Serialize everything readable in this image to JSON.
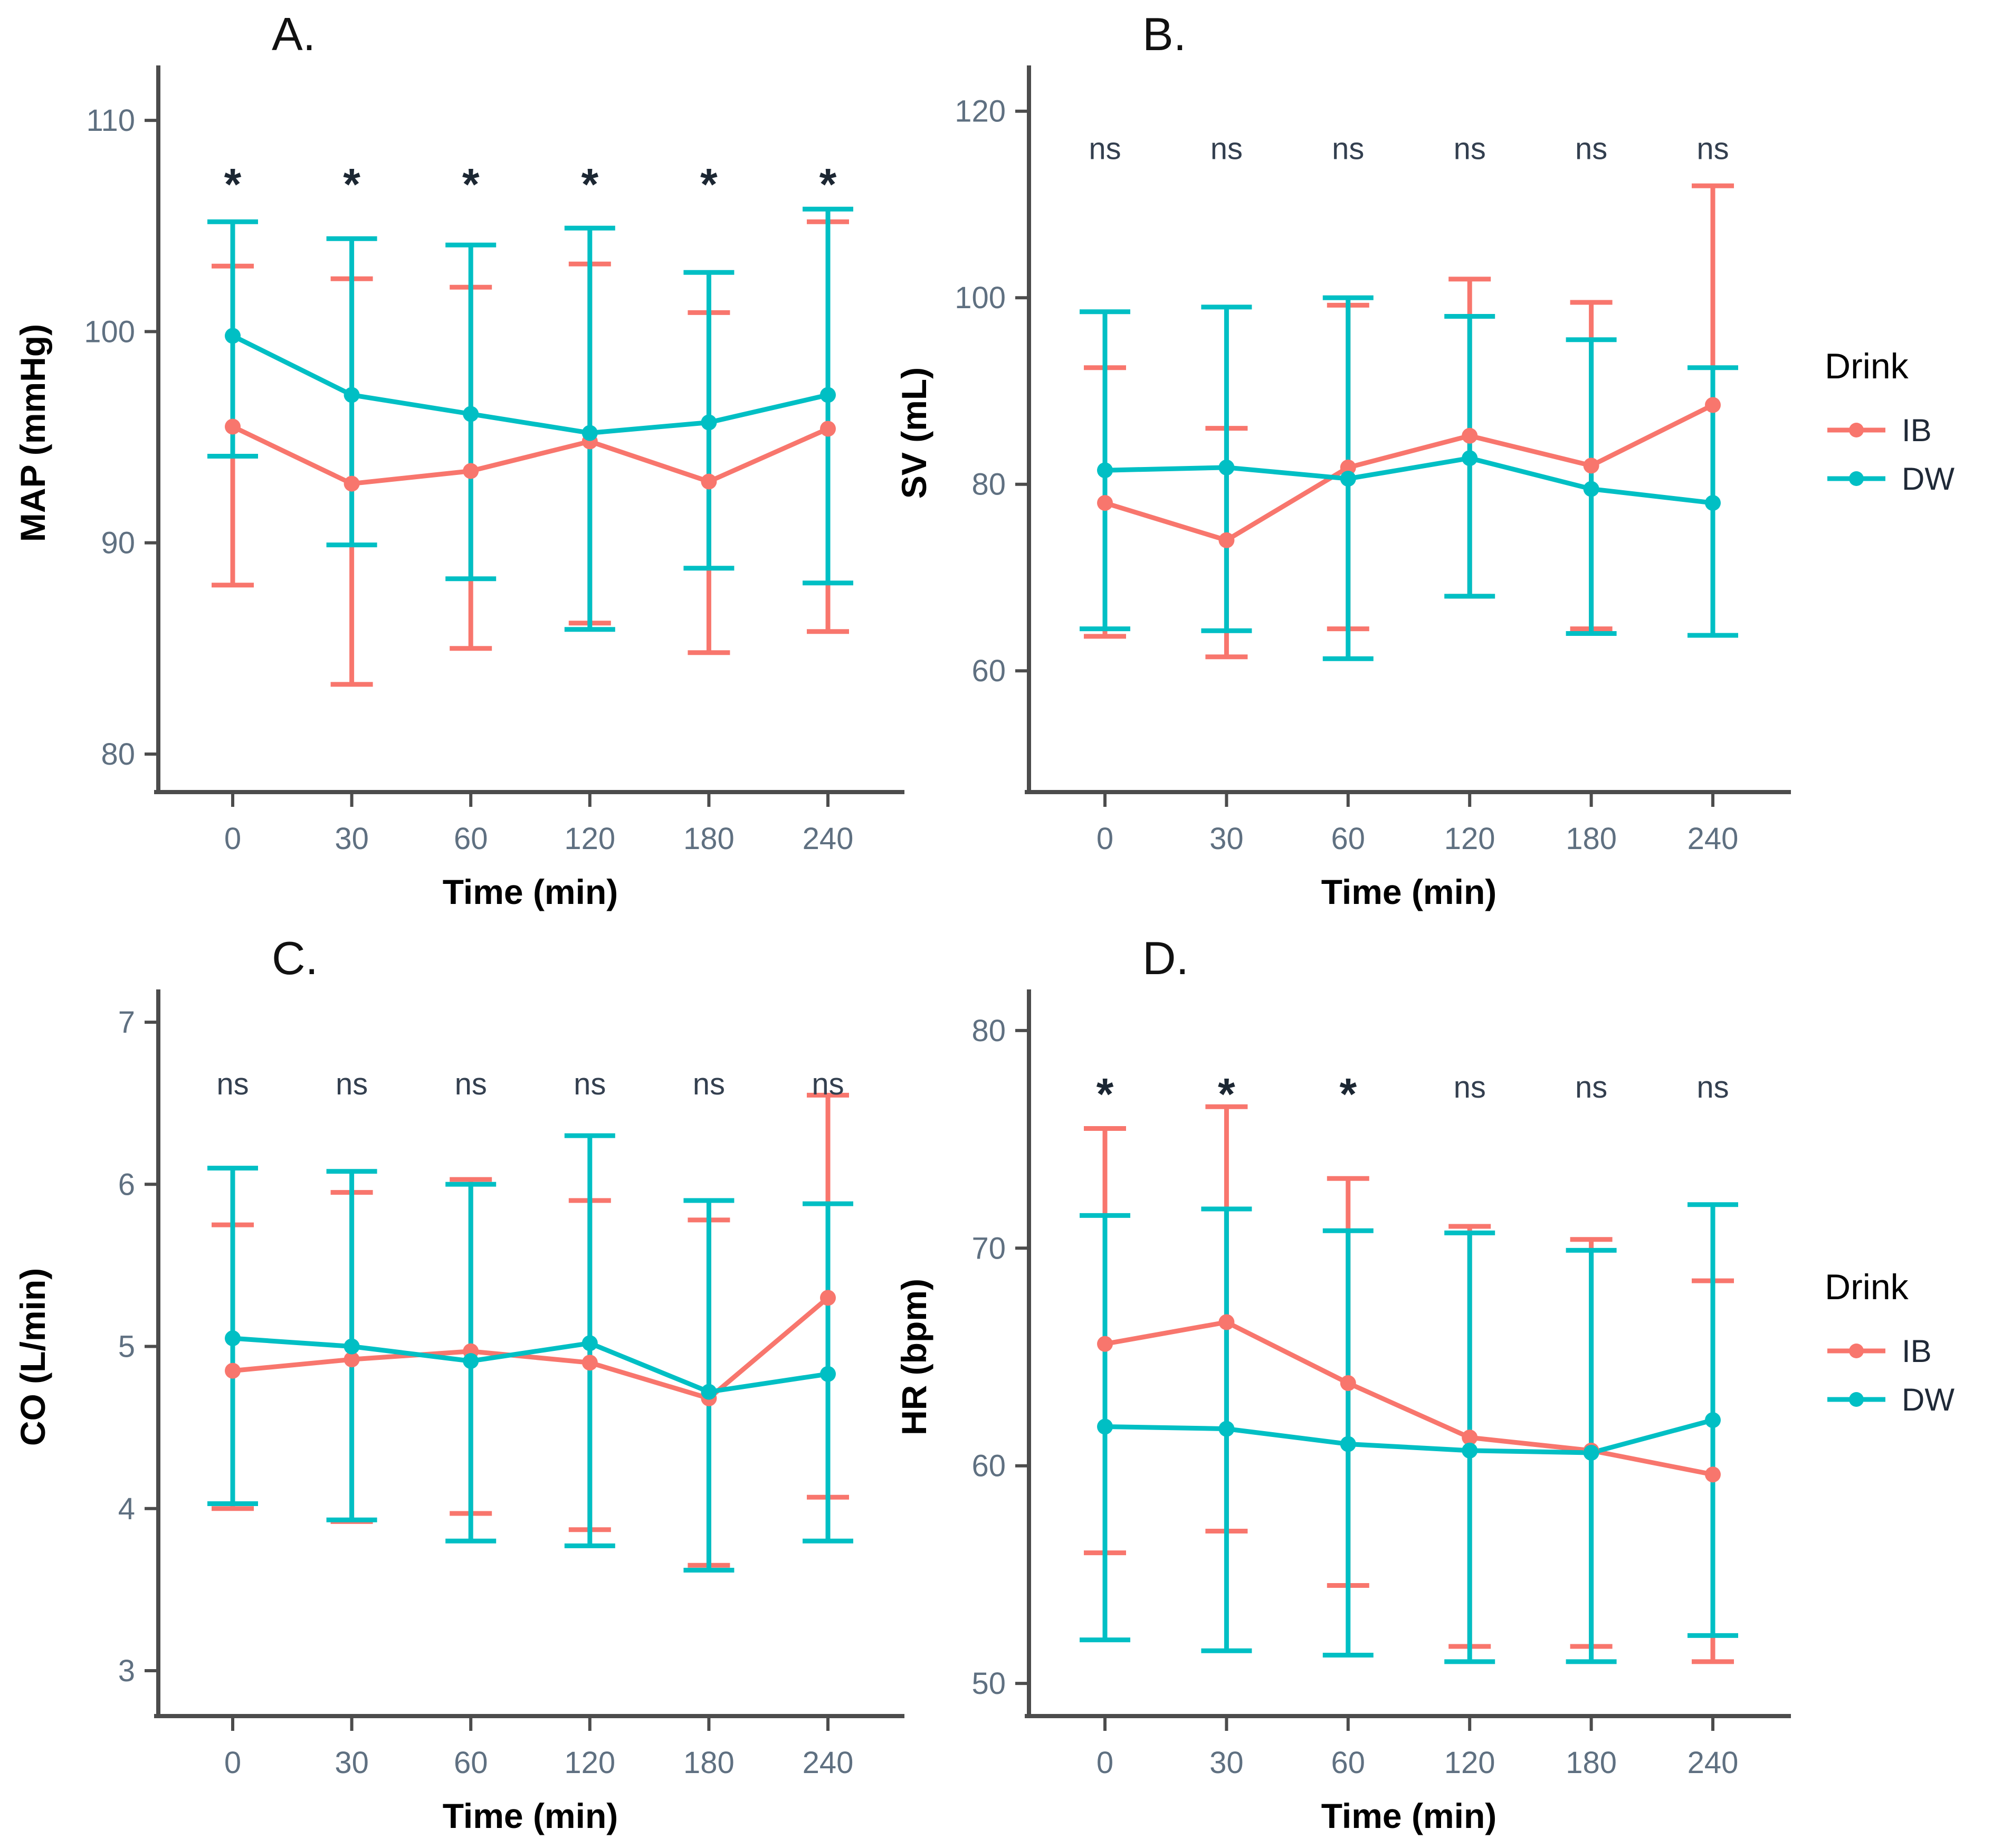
{
  "figure": {
    "background": "#ffffff"
  },
  "legend": {
    "title": "Drink",
    "items": [
      {
        "label": "IB",
        "color": "#f8766d"
      },
      {
        "label": "DW",
        "color": "#00bfc4"
      }
    ]
  },
  "chart_data": [
    {
      "id": "A",
      "label": "A.",
      "type": "line",
      "ylabel": "MAP (mmHg)",
      "xlabel": "Time (min)",
      "categories": [
        0,
        30,
        60,
        120,
        180,
        240
      ],
      "yticks": [
        80,
        90,
        100,
        110
      ],
      "ylim": [
        78.2,
        112.2
      ],
      "grid": false,
      "sig": [
        "*",
        "*",
        "*",
        "*",
        "*",
        "*"
      ],
      "sig_y": 107.3,
      "series": [
        {
          "name": "IB",
          "color": "#f8766d",
          "mean": [
            95.5,
            92.8,
            93.4,
            94.8,
            92.9,
            95.4
          ],
          "upper": [
            103.1,
            102.5,
            102.1,
            103.2,
            100.9,
            105.2
          ],
          "lower": [
            88.0,
            83.3,
            85.0,
            86.2,
            84.8,
            85.8
          ]
        },
        {
          "name": "DW",
          "color": "#00bfc4",
          "mean": [
            99.8,
            97.0,
            96.1,
            95.2,
            95.7,
            97.0
          ],
          "upper": [
            105.2,
            104.4,
            104.1,
            104.9,
            102.8,
            105.8
          ],
          "lower": [
            94.1,
            89.9,
            88.3,
            85.9,
            88.8,
            88.1
          ]
        }
      ]
    },
    {
      "id": "B",
      "label": "B.",
      "type": "line",
      "ylabel": "SV (mL)",
      "xlabel": "Time (min)",
      "categories": [
        0,
        30,
        60,
        120,
        180,
        240
      ],
      "yticks": [
        60,
        80,
        100,
        120
      ],
      "ylim": [
        47,
        124
      ],
      "grid": false,
      "sig": [
        "ns",
        "ns",
        "ns",
        "ns",
        "ns",
        "ns"
      ],
      "sig_y": 116,
      "series": [
        {
          "name": "IB",
          "color": "#f8766d",
          "mean": [
            78.0,
            74.0,
            81.8,
            85.2,
            82.0,
            88.5
          ],
          "upper": [
            92.5,
            86.0,
            99.2,
            102.0,
            99.5,
            112.0
          ],
          "lower": [
            63.7,
            61.5,
            64.5,
            68.0,
            64.5,
            63.8
          ]
        },
        {
          "name": "DW",
          "color": "#00bfc4",
          "mean": [
            81.5,
            81.8,
            80.6,
            82.8,
            79.5,
            78.0
          ],
          "upper": [
            98.5,
            99.0,
            100.0,
            98.0,
            95.5,
            92.5
          ],
          "lower": [
            64.5,
            64.3,
            61.3,
            68.0,
            64.0,
            63.8
          ]
        }
      ]
    },
    {
      "id": "C",
      "label": "C.",
      "type": "line",
      "ylabel": "CO (L/min)",
      "xlabel": "Time (min)",
      "categories": [
        0,
        30,
        60,
        120,
        180,
        240
      ],
      "yticks": [
        3,
        4,
        5,
        6,
        7
      ],
      "ylim": [
        2.72,
        7.15
      ],
      "grid": false,
      "sig": [
        "ns",
        "ns",
        "ns",
        "ns",
        "ns",
        "ns"
      ],
      "sig_y": 6.62,
      "series": [
        {
          "name": "IB",
          "color": "#f8766d",
          "mean": [
            4.85,
            4.92,
            4.97,
            4.9,
            4.68,
            5.3
          ],
          "upper": [
            5.75,
            5.95,
            6.03,
            5.9,
            5.78,
            6.55
          ],
          "lower": [
            4.0,
            3.92,
            3.97,
            3.87,
            3.65,
            4.07
          ]
        },
        {
          "name": "DW",
          "color": "#00bfc4",
          "mean": [
            5.05,
            5.0,
            4.91,
            5.02,
            4.72,
            4.83
          ],
          "upper": [
            6.1,
            6.08,
            6.0,
            6.3,
            5.9,
            5.88
          ],
          "lower": [
            4.03,
            3.93,
            3.8,
            3.77,
            3.62,
            3.8
          ]
        }
      ]
    },
    {
      "id": "D",
      "label": "D.",
      "type": "line",
      "ylabel": "HR (bpm)",
      "xlabel": "Time (min)",
      "categories": [
        0,
        30,
        60,
        120,
        180,
        240
      ],
      "yticks": [
        50,
        60,
        70,
        80
      ],
      "ylim": [
        48.5,
        81.5
      ],
      "grid": false,
      "sig": [
        "*",
        "*",
        "*",
        "ns",
        "ns",
        "ns"
      ],
      "sig_y": 77.4,
      "series": [
        {
          "name": "IB",
          "color": "#f8766d",
          "mean": [
            65.6,
            66.6,
            63.8,
            61.3,
            60.7,
            59.6
          ],
          "upper": [
            75.5,
            76.5,
            73.2,
            71.0,
            70.4,
            68.5
          ],
          "lower": [
            56.0,
            57.0,
            54.5,
            51.7,
            51.7,
            51.0
          ]
        },
        {
          "name": "DW",
          "color": "#00bfc4",
          "mean": [
            61.8,
            61.7,
            61.0,
            60.7,
            60.6,
            62.1
          ],
          "upper": [
            71.5,
            71.8,
            70.8,
            70.7,
            69.9,
            72.0
          ],
          "lower": [
            52.0,
            51.5,
            51.3,
            51.0,
            51.0,
            52.2
          ]
        }
      ]
    }
  ]
}
